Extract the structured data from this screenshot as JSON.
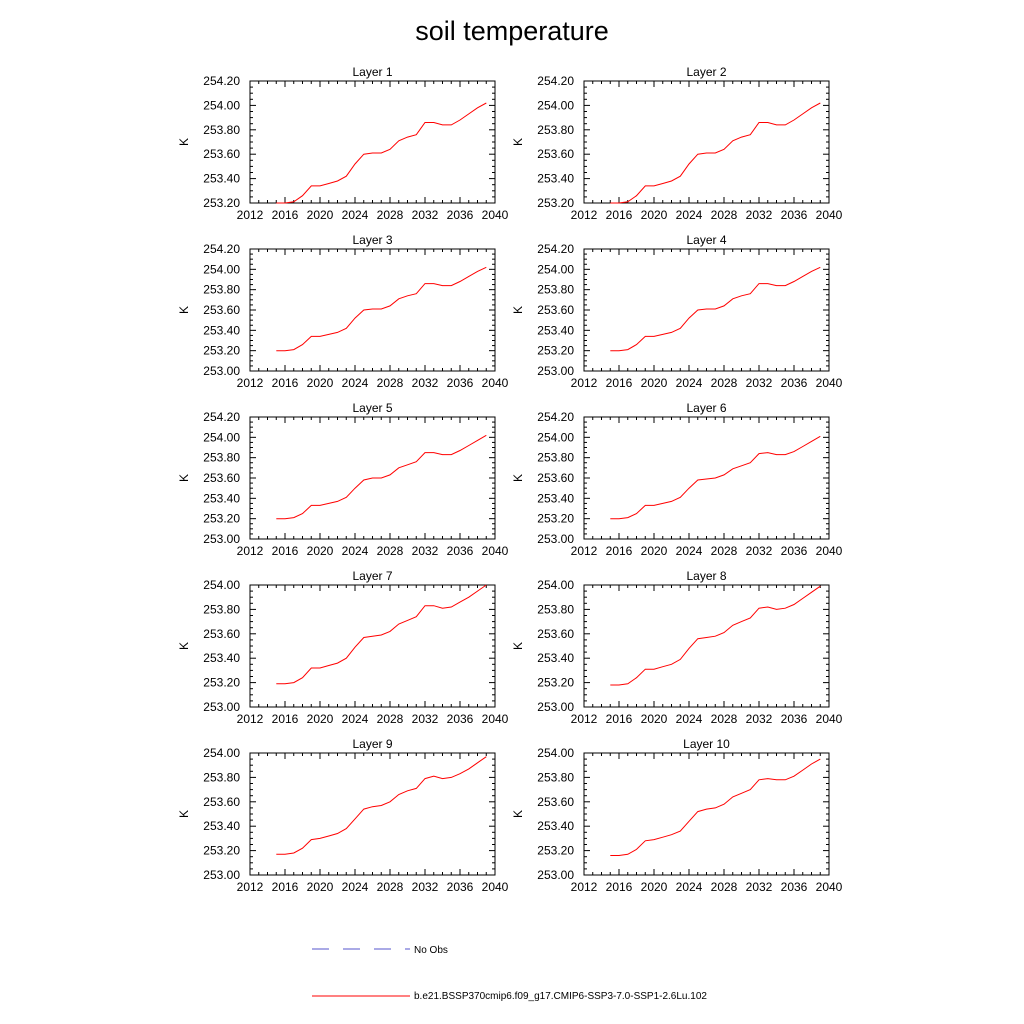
{
  "title": "soil temperature",
  "chart_data": [
    {
      "type": "line",
      "title": "Layer 1",
      "ylabel": "K",
      "xlim": [
        2012,
        2040
      ],
      "ylim": [
        253.2,
        254.2
      ],
      "xticks": [
        2012,
        2016,
        2020,
        2024,
        2028,
        2032,
        2036,
        2040
      ],
      "yticks": [
        "253.20",
        "253.40",
        "253.60",
        "253.80",
        "254.00",
        "254.20"
      ],
      "series": [
        {
          "name": "b.e21.BSSP370cmip6.f09_g17.CMIP6-SSP3-7.0-SSP1-2.6Lu.102",
          "color": "#ff0000",
          "x": [
            2015,
            2016,
            2017,
            2018,
            2019,
            2020,
            2021,
            2022,
            2023,
            2024,
            2025,
            2026,
            2027,
            2028,
            2029,
            2030,
            2031,
            2032,
            2033,
            2034,
            2035,
            2036,
            2037,
            2038,
            2039
          ],
          "y": [
            253.2,
            253.2,
            253.21,
            253.26,
            253.34,
            253.34,
            253.36,
            253.38,
            253.42,
            253.52,
            253.6,
            253.61,
            253.61,
            253.64,
            253.71,
            253.74,
            253.76,
            253.86,
            253.86,
            253.84,
            253.84,
            253.88,
            253.93,
            253.98,
            254.02
          ]
        }
      ]
    },
    {
      "type": "line",
      "title": "Layer 2",
      "ylabel": "K",
      "xlim": [
        2012,
        2040
      ],
      "ylim": [
        253.2,
        254.2
      ],
      "xticks": [
        2012,
        2016,
        2020,
        2024,
        2028,
        2032,
        2036,
        2040
      ],
      "yticks": [
        "253.20",
        "253.40",
        "253.60",
        "253.80",
        "254.00",
        "254.20"
      ],
      "series": [
        {
          "name": "b.e21.BSSP370cmip6.f09_g17.CMIP6-SSP3-7.0-SSP1-2.6Lu.102",
          "color": "#ff0000",
          "x": [
            2015,
            2016,
            2017,
            2018,
            2019,
            2020,
            2021,
            2022,
            2023,
            2024,
            2025,
            2026,
            2027,
            2028,
            2029,
            2030,
            2031,
            2032,
            2033,
            2034,
            2035,
            2036,
            2037,
            2038,
            2039
          ],
          "y": [
            253.2,
            253.2,
            253.21,
            253.26,
            253.34,
            253.34,
            253.36,
            253.38,
            253.42,
            253.52,
            253.6,
            253.61,
            253.61,
            253.64,
            253.71,
            253.74,
            253.76,
            253.86,
            253.86,
            253.84,
            253.84,
            253.88,
            253.93,
            253.98,
            254.02
          ]
        }
      ]
    },
    {
      "type": "line",
      "title": "Layer 3",
      "ylabel": "K",
      "xlim": [
        2012,
        2040
      ],
      "ylim": [
        253.0,
        254.2
      ],
      "xticks": [
        2012,
        2016,
        2020,
        2024,
        2028,
        2032,
        2036,
        2040
      ],
      "yticks": [
        "253.00",
        "253.20",
        "253.40",
        "253.60",
        "253.80",
        "254.00",
        "254.20"
      ],
      "series": [
        {
          "name": "b.e21.BSSP370cmip6.f09_g17.CMIP6-SSP3-7.0-SSP1-2.6Lu.102",
          "color": "#ff0000",
          "x": [
            2015,
            2016,
            2017,
            2018,
            2019,
            2020,
            2021,
            2022,
            2023,
            2024,
            2025,
            2026,
            2027,
            2028,
            2029,
            2030,
            2031,
            2032,
            2033,
            2034,
            2035,
            2036,
            2037,
            2038,
            2039
          ],
          "y": [
            253.2,
            253.2,
            253.21,
            253.26,
            253.34,
            253.34,
            253.36,
            253.38,
            253.42,
            253.52,
            253.6,
            253.61,
            253.61,
            253.64,
            253.71,
            253.74,
            253.76,
            253.86,
            253.86,
            253.84,
            253.84,
            253.88,
            253.93,
            253.98,
            254.02
          ]
        }
      ]
    },
    {
      "type": "line",
      "title": "Layer 4",
      "ylabel": "K",
      "xlim": [
        2012,
        2040
      ],
      "ylim": [
        253.0,
        254.2
      ],
      "xticks": [
        2012,
        2016,
        2020,
        2024,
        2028,
        2032,
        2036,
        2040
      ],
      "yticks": [
        "253.00",
        "253.20",
        "253.40",
        "253.60",
        "253.80",
        "254.00",
        "254.20"
      ],
      "series": [
        {
          "name": "b.e21.BSSP370cmip6.f09_g17.CMIP6-SSP3-7.0-SSP1-2.6Lu.102",
          "color": "#ff0000",
          "x": [
            2015,
            2016,
            2017,
            2018,
            2019,
            2020,
            2021,
            2022,
            2023,
            2024,
            2025,
            2026,
            2027,
            2028,
            2029,
            2030,
            2031,
            2032,
            2033,
            2034,
            2035,
            2036,
            2037,
            2038,
            2039
          ],
          "y": [
            253.2,
            253.2,
            253.21,
            253.26,
            253.34,
            253.34,
            253.36,
            253.38,
            253.42,
            253.52,
            253.6,
            253.61,
            253.61,
            253.64,
            253.71,
            253.74,
            253.76,
            253.86,
            253.86,
            253.84,
            253.84,
            253.88,
            253.93,
            253.98,
            254.02
          ]
        }
      ]
    },
    {
      "type": "line",
      "title": "Layer 5",
      "ylabel": "K",
      "xlim": [
        2012,
        2040
      ],
      "ylim": [
        253.0,
        254.2
      ],
      "xticks": [
        2012,
        2016,
        2020,
        2024,
        2028,
        2032,
        2036,
        2040
      ],
      "yticks": [
        "253.00",
        "253.20",
        "253.40",
        "253.60",
        "253.80",
        "254.00",
        "254.20"
      ],
      "series": [
        {
          "name": "b.e21.BSSP370cmip6.f09_g17.CMIP6-SSP3-7.0-SSP1-2.6Lu.102",
          "color": "#ff0000",
          "x": [
            2015,
            2016,
            2017,
            2018,
            2019,
            2020,
            2021,
            2022,
            2023,
            2024,
            2025,
            2026,
            2027,
            2028,
            2029,
            2030,
            2031,
            2032,
            2033,
            2034,
            2035,
            2036,
            2037,
            2038,
            2039
          ],
          "y": [
            253.2,
            253.2,
            253.21,
            253.25,
            253.33,
            253.33,
            253.35,
            253.37,
            253.41,
            253.5,
            253.58,
            253.6,
            253.6,
            253.63,
            253.7,
            253.73,
            253.76,
            253.85,
            253.85,
            253.83,
            253.83,
            253.87,
            253.92,
            253.97,
            254.02
          ]
        }
      ]
    },
    {
      "type": "line",
      "title": "Layer 6",
      "ylabel": "K",
      "xlim": [
        2012,
        2040
      ],
      "ylim": [
        253.0,
        254.2
      ],
      "xticks": [
        2012,
        2016,
        2020,
        2024,
        2028,
        2032,
        2036,
        2040
      ],
      "yticks": [
        "253.00",
        "253.20",
        "253.40",
        "253.60",
        "253.80",
        "254.00",
        "254.20"
      ],
      "series": [
        {
          "name": "b.e21.BSSP370cmip6.f09_g17.CMIP6-SSP3-7.0-SSP1-2.6Lu.102",
          "color": "#ff0000",
          "x": [
            2015,
            2016,
            2017,
            2018,
            2019,
            2020,
            2021,
            2022,
            2023,
            2024,
            2025,
            2026,
            2027,
            2028,
            2029,
            2030,
            2031,
            2032,
            2033,
            2034,
            2035,
            2036,
            2037,
            2038,
            2039
          ],
          "y": [
            253.2,
            253.2,
            253.21,
            253.25,
            253.33,
            253.33,
            253.35,
            253.37,
            253.41,
            253.5,
            253.58,
            253.59,
            253.6,
            253.63,
            253.69,
            253.72,
            253.75,
            253.84,
            253.85,
            253.83,
            253.83,
            253.86,
            253.91,
            253.96,
            254.01
          ]
        }
      ]
    },
    {
      "type": "line",
      "title": "Layer 7",
      "ylabel": "K",
      "xlim": [
        2012,
        2040
      ],
      "ylim": [
        253.0,
        254.0
      ],
      "xticks": [
        2012,
        2016,
        2020,
        2024,
        2028,
        2032,
        2036,
        2040
      ],
      "yticks": [
        "253.00",
        "253.20",
        "253.40",
        "253.60",
        "253.80",
        "254.00"
      ],
      "series": [
        {
          "name": "b.e21.BSSP370cmip6.f09_g17.CMIP6-SSP3-7.0-SSP1-2.6Lu.102",
          "color": "#ff0000",
          "x": [
            2015,
            2016,
            2017,
            2018,
            2019,
            2020,
            2021,
            2022,
            2023,
            2024,
            2025,
            2026,
            2027,
            2028,
            2029,
            2030,
            2031,
            2032,
            2033,
            2034,
            2035,
            2036,
            2037,
            2038,
            2039
          ],
          "y": [
            253.19,
            253.19,
            253.2,
            253.24,
            253.32,
            253.32,
            253.34,
            253.36,
            253.4,
            253.49,
            253.57,
            253.58,
            253.59,
            253.62,
            253.68,
            253.71,
            253.74,
            253.83,
            253.83,
            253.81,
            253.82,
            253.86,
            253.9,
            253.95,
            254.0
          ]
        }
      ]
    },
    {
      "type": "line",
      "title": "Layer 8",
      "ylabel": "K",
      "xlim": [
        2012,
        2040
      ],
      "ylim": [
        253.0,
        254.0
      ],
      "xticks": [
        2012,
        2016,
        2020,
        2024,
        2028,
        2032,
        2036,
        2040
      ],
      "yticks": [
        "253.00",
        "253.20",
        "253.40",
        "253.60",
        "253.80",
        "254.00"
      ],
      "series": [
        {
          "name": "b.e21.BSSP370cmip6.f09_g17.CMIP6-SSP3-7.0-SSP1-2.6Lu.102",
          "color": "#ff0000",
          "x": [
            2015,
            2016,
            2017,
            2018,
            2019,
            2020,
            2021,
            2022,
            2023,
            2024,
            2025,
            2026,
            2027,
            2028,
            2029,
            2030,
            2031,
            2032,
            2033,
            2034,
            2035,
            2036,
            2037,
            2038,
            2039
          ],
          "y": [
            253.18,
            253.18,
            253.19,
            253.24,
            253.31,
            253.31,
            253.33,
            253.35,
            253.39,
            253.48,
            253.56,
            253.57,
            253.58,
            253.61,
            253.67,
            253.7,
            253.73,
            253.81,
            253.82,
            253.8,
            253.81,
            253.84,
            253.89,
            253.94,
            253.99
          ]
        }
      ]
    },
    {
      "type": "line",
      "title": "Layer 9",
      "ylabel": "K",
      "xlim": [
        2012,
        2040
      ],
      "ylim": [
        253.0,
        254.0
      ],
      "xticks": [
        2012,
        2016,
        2020,
        2024,
        2028,
        2032,
        2036,
        2040
      ],
      "yticks": [
        "253.00",
        "253.20",
        "253.40",
        "253.60",
        "253.80",
        "254.00"
      ],
      "series": [
        {
          "name": "b.e21.BSSP370cmip6.f09_g17.CMIP6-SSP3-7.0-SSP1-2.6Lu.102",
          "color": "#ff0000",
          "x": [
            2015,
            2016,
            2017,
            2018,
            2019,
            2020,
            2021,
            2022,
            2023,
            2024,
            2025,
            2026,
            2027,
            2028,
            2029,
            2030,
            2031,
            2032,
            2033,
            2034,
            2035,
            2036,
            2037,
            2038,
            2039
          ],
          "y": [
            253.17,
            253.17,
            253.18,
            253.22,
            253.29,
            253.3,
            253.32,
            253.34,
            253.38,
            253.46,
            253.54,
            253.56,
            253.57,
            253.6,
            253.66,
            253.69,
            253.71,
            253.79,
            253.81,
            253.79,
            253.8,
            253.83,
            253.87,
            253.92,
            253.97
          ]
        }
      ]
    },
    {
      "type": "line",
      "title": "Layer 10",
      "ylabel": "K",
      "xlim": [
        2012,
        2040
      ],
      "ylim": [
        253.0,
        254.0
      ],
      "xticks": [
        2012,
        2016,
        2020,
        2024,
        2028,
        2032,
        2036,
        2040
      ],
      "yticks": [
        "253.00",
        "253.20",
        "253.40",
        "253.60",
        "253.80",
        "254.00"
      ],
      "series": [
        {
          "name": "b.e21.BSSP370cmip6.f09_g17.CMIP6-SSP3-7.0-SSP1-2.6Lu.102",
          "color": "#ff0000",
          "x": [
            2015,
            2016,
            2017,
            2018,
            2019,
            2020,
            2021,
            2022,
            2023,
            2024,
            2025,
            2026,
            2027,
            2028,
            2029,
            2030,
            2031,
            2032,
            2033,
            2034,
            2035,
            2036,
            2037,
            2038,
            2039
          ],
          "y": [
            253.16,
            253.16,
            253.17,
            253.21,
            253.28,
            253.29,
            253.31,
            253.33,
            253.36,
            253.44,
            253.52,
            253.54,
            253.55,
            253.58,
            253.64,
            253.67,
            253.7,
            253.78,
            253.79,
            253.78,
            253.78,
            253.81,
            253.86,
            253.91,
            253.95
          ]
        }
      ]
    }
  ],
  "legend": [
    {
      "label": "No Obs",
      "color": "#5555cc",
      "style": "dashed"
    },
    {
      "label": "b.e21.BSSP370cmip6.f09_g17.CMIP6-SSP3-7.0-SSP1-2.6Lu.102",
      "color": "#ff0000",
      "style": "solid"
    }
  ]
}
